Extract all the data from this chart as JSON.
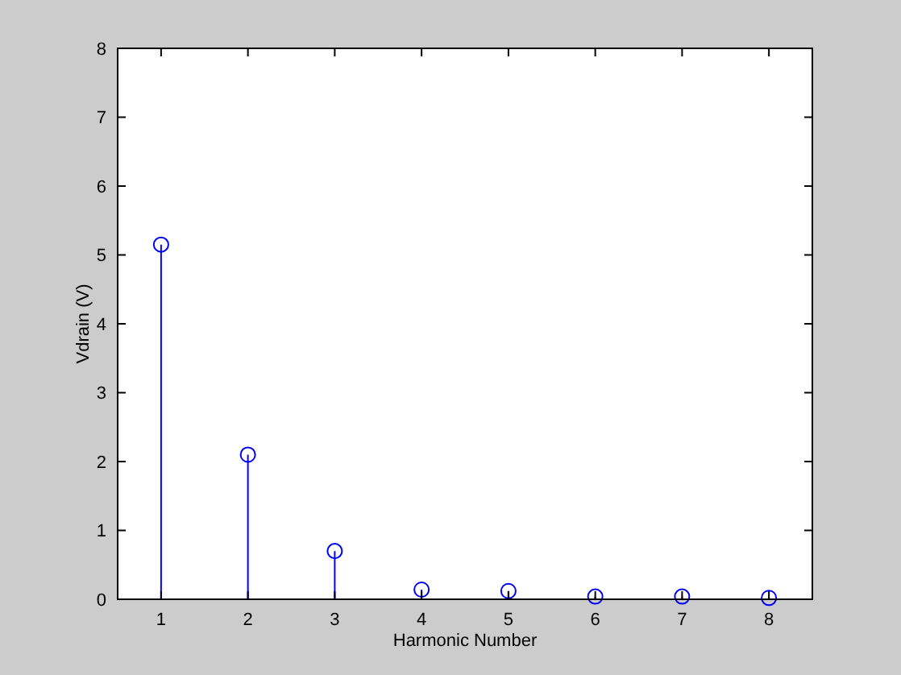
{
  "chart_data": {
    "type": "lollipop",
    "x": [
      1,
      2,
      3,
      4,
      5,
      6,
      7,
      8
    ],
    "values": [
      5.15,
      2.1,
      0.7,
      0.14,
      0.12,
      0.04,
      0.04,
      0.02
    ],
    "color": "#0000ff",
    "marker": "circle",
    "xlabel": "Harmonic Number",
    "ylabel": "Vdrain (V)",
    "xlim": [
      0.5,
      8.5
    ],
    "xticks": [
      1,
      2,
      3,
      4,
      5,
      6,
      7,
      8
    ],
    "ylim": [
      0,
      8
    ],
    "yticks": [
      0,
      1,
      2,
      3,
      4,
      5,
      6,
      7,
      8
    ]
  }
}
